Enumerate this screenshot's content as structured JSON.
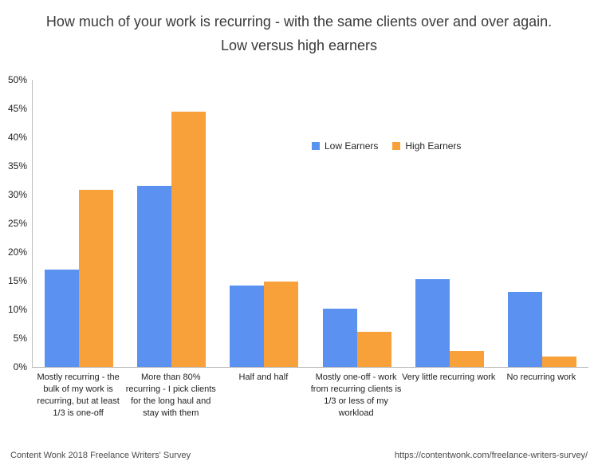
{
  "title": {
    "line1": "How much of your work is recurring - with the same clients over and over again.",
    "line2": "Low versus high earners"
  },
  "legend": {
    "items": [
      {
        "label": "Low Earners",
        "color": "#5B92F1"
      },
      {
        "label": "High Earners",
        "color": "#F8A13A"
      }
    ]
  },
  "footer": {
    "left": "Content Wonk 2018 Freelance Writers' Survey",
    "right": "https://contentwonk.com/freelance-writers-survey/"
  },
  "chart_data": {
    "type": "bar",
    "title": "How much of your work is recurring - with the same clients over and over again. Low versus high earners",
    "categories": [
      "Mostly recurring - the bulk of my work is recurring, but at least 1/3 is one-off",
      "More than 80% recurring - I pick clients for the long haul and stay with them",
      "Half and half",
      "Mostly one-off - work from recurring clients is 1/3 or less of my workload",
      "Very little recurring work",
      "No recurring work"
    ],
    "series": [
      {
        "name": "Low Earners",
        "color": "#5B92F1",
        "values": [
          17,
          31.5,
          14.2,
          10.2,
          15.3,
          13
        ]
      },
      {
        "name": "High Earners",
        "color": "#F8A13A",
        "values": [
          30.8,
          44.5,
          14.9,
          6.1,
          2.8,
          1.8
        ]
      }
    ],
    "xlabel": "",
    "ylabel": "",
    "ylim": [
      0,
      50
    ],
    "ytick_step": 5,
    "ytick_suffix": "%",
    "grid": false,
    "legend_position": "inside-top-center-right"
  }
}
